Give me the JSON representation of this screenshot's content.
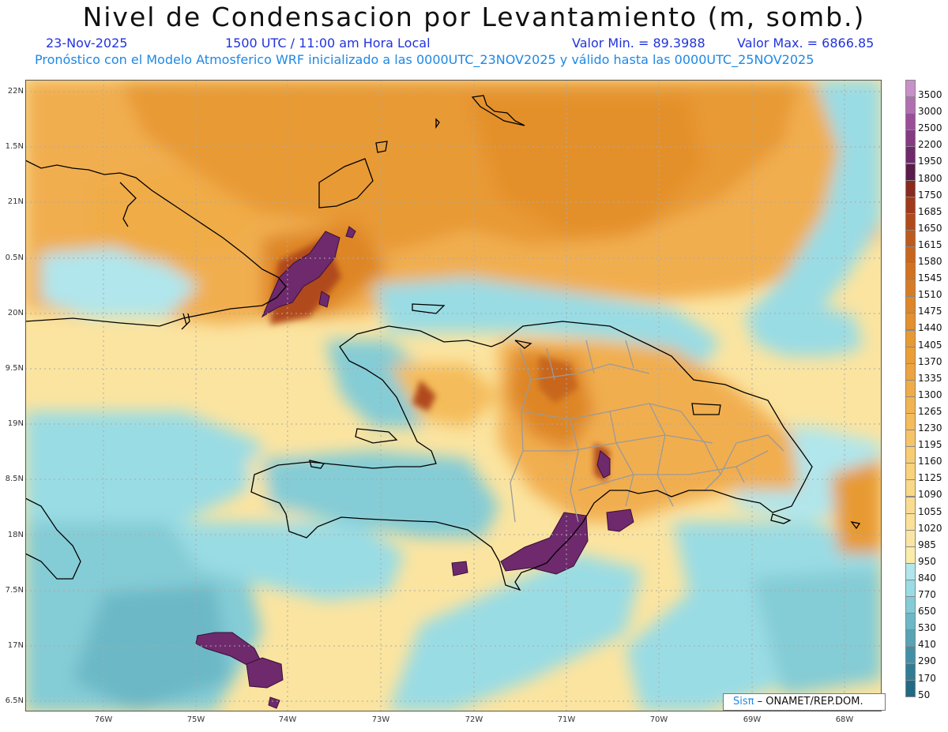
{
  "header": {
    "title": "Nivel de Condensacion por Levantamiento (m, somb.)",
    "date": "23-Nov-2025",
    "time": "1500 UTC / 11:00 am Hora Local",
    "min_label": "Valor Min. = 89.3988",
    "max_label": "Valor Max. = 6866.85",
    "forecast": "Pronóstico con el Modelo Atmosferico WRF inicializado a las 0000UTC_23NOV2025 y válido hasta las  0000UTC_25NOV2025"
  },
  "axes": {
    "lat_labels": [
      "22N",
      "1.5N",
      "21N",
      "0.5N",
      "20N",
      "9.5N",
      "19N",
      "8.5N",
      "18N",
      "7.5N",
      "17N",
      "6.5N"
    ],
    "lon_labels": [
      "76W",
      "75W",
      "74W",
      "73W",
      "72W",
      "71W",
      "70W",
      "69W",
      "68W"
    ]
  },
  "colorbar": {
    "labels": [
      "3500",
      "3000",
      "2500",
      "2200",
      "1950",
      "1800",
      "1750",
      "1685",
      "1650",
      "1615",
      "1580",
      "1545",
      "1510",
      "1475",
      "1440",
      "1405",
      "1370",
      "1335",
      "1300",
      "1265",
      "1230",
      "1195",
      "1160",
      "1125",
      "1090",
      "1055",
      "1020",
      "985",
      "950",
      "840",
      "770",
      "650",
      "530",
      "410",
      "290",
      "170",
      "50"
    ],
    "colors": [
      "#c890c8",
      "#b070b0",
      "#9a4e98",
      "#853a82",
      "#6e2a6c",
      "#5a1c4a",
      "#8a2a1e",
      "#a03a1c",
      "#b04a1a",
      "#bd5a1c",
      "#c8661e",
      "#d07220",
      "#d87c24",
      "#de8628",
      "#e4902c",
      "#e89a32",
      "#ec9e36",
      "#eea43e",
      "#f0ac46",
      "#f2b450",
      "#f4bc5a",
      "#f6c466",
      "#f8cc72",
      "#f8d27c",
      "#f9d886",
      "#fadc90",
      "#fbe098",
      "#fbe5a2",
      "#fcecaa",
      "#b0e6ec",
      "#9adce4",
      "#84ccd6",
      "#6cb8c6",
      "#56a4b6",
      "#4290a6",
      "#307c94",
      "#226a84"
    ]
  },
  "credit": {
    "brand": "Sisπ",
    "text": "– ONAMET/REP.DOM."
  }
}
